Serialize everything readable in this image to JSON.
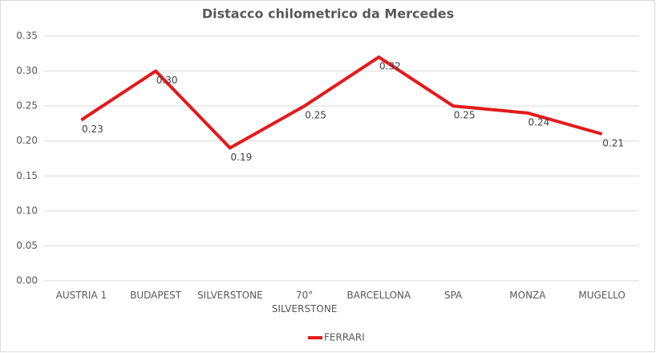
{
  "chart_data": {
    "type": "line",
    "title": "Distacco chilometrico da Mercedes",
    "categories": [
      "AUSTRIA 1",
      "BUDAPEST",
      "SILVERSTONE",
      "70° SILVERSTONE",
      "BARCELLONA",
      "SPA",
      "MONZA",
      "MUGELLO"
    ],
    "series": [
      {
        "name": "FERRARI",
        "color": "#e31a1c",
        "values": [
          0.23,
          0.3,
          0.19,
          0.25,
          0.32,
          0.25,
          0.24,
          0.21
        ],
        "value_labels": [
          "0.23",
          "0.30",
          "0.19",
          "0.25",
          "0.32",
          "0.25",
          "0.24",
          "0.21"
        ]
      }
    ],
    "ylim": [
      0,
      0.35
    ],
    "yticks": [
      {
        "value": 0,
        "label": "0.00"
      },
      {
        "value": 0.05,
        "label": "0.05"
      },
      {
        "value": 0.1,
        "label": "0.10"
      },
      {
        "value": 0.15,
        "label": "0.15"
      },
      {
        "value": 0.2,
        "label": "0.20"
      },
      {
        "value": 0.25,
        "label": "0.25"
      },
      {
        "value": 0.3,
        "label": "0.30"
      },
      {
        "value": 0.35,
        "label": "0.35"
      }
    ],
    "grid": true,
    "legend": "bottom"
  }
}
